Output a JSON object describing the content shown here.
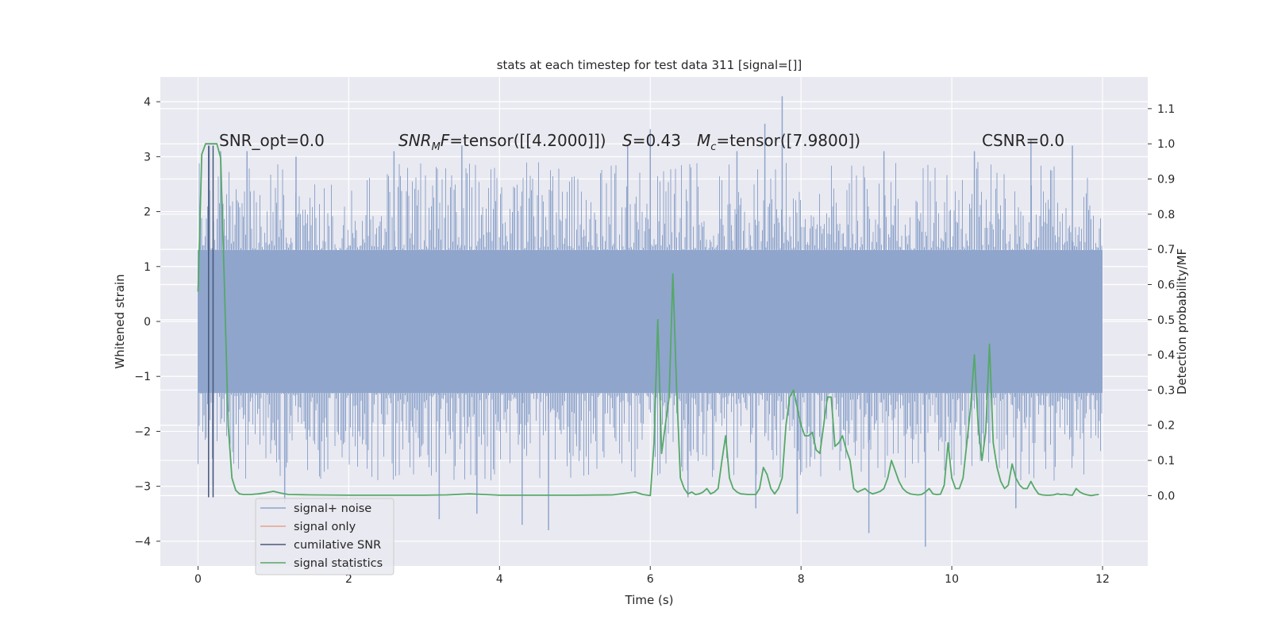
{
  "chart_data": {
    "type": "line",
    "title": "stats at each timestep for test data 311 [signal=[]]",
    "xlabel": "Time (s)",
    "ylabel": "Whitened strain",
    "ylabel_right": "Detection probability/MF",
    "xlim": [
      -0.5,
      12.6
    ],
    "ylim": [
      -4.45,
      4.45
    ],
    "ylim_right": [
      -0.2,
      1.19
    ],
    "x_ticks": [
      0,
      2,
      4,
      6,
      8,
      10,
      12
    ],
    "y_ticks": [
      -4,
      -3,
      -2,
      -1,
      0,
      1,
      2,
      3,
      4
    ],
    "y_ticks_right": [
      0.0,
      0.1,
      0.2,
      0.3,
      0.4,
      0.5,
      0.6,
      0.7,
      0.8,
      0.9,
      1.0,
      1.1
    ],
    "grid": true,
    "legend": {
      "placement": "lower-left",
      "entries": [
        "signal+ noise",
        "signal only",
        "cumilative SNR",
        "signal statistics"
      ]
    },
    "annotations": {
      "snr_opt": "SNR_opt=0.0",
      "snr_mf": "=tensor([[4.2000]])",
      "snr_mf_sym": "SNR",
      "snr_mf_sub": "M",
      "snr_mf_tail": "F",
      "s_sym": "S",
      "s_val": "=0.43",
      "mc_sym": "M",
      "mc_sub": "c",
      "mc_val": "=tensor([7.9800])",
      "csnr": "CSNR=0.0"
    },
    "series": [
      {
        "name": "signal+ noise",
        "axis": "left",
        "color": "#8fa5cc",
        "x_range": [
          0,
          12
        ],
        "band": [
          -1.3,
          1.3
        ],
        "spikes": [
          {
            "x": 0.03,
            "y": 2.1
          },
          {
            "x": 0.15,
            "y": 3.2
          },
          {
            "x": 0.3,
            "y": 3.1
          },
          {
            "x": 0.65,
            "y": 3.1
          },
          {
            "x": 1.3,
            "y": 3.0
          },
          {
            "x": 2.6,
            "y": 3.1
          },
          {
            "x": 3.5,
            "y": 3.2
          },
          {
            "x": 5.7,
            "y": 3.2
          },
          {
            "x": 6.0,
            "y": 3.5
          },
          {
            "x": 7.15,
            "y": 3.1
          },
          {
            "x": 7.52,
            "y": 3.6
          },
          {
            "x": 7.75,
            "y": 4.1
          },
          {
            "x": 9.1,
            "y": 3.1
          },
          {
            "x": 10.3,
            "y": 3.1
          },
          {
            "x": 11.05,
            "y": 3.3
          },
          {
            "x": 11.6,
            "y": 3.2
          },
          {
            "x": 3.2,
            "y": -3.6
          },
          {
            "x": 3.7,
            "y": -3.5
          },
          {
            "x": 4.3,
            "y": -3.7
          },
          {
            "x": 4.65,
            "y": -3.8
          },
          {
            "x": 7.95,
            "y": -3.5
          },
          {
            "x": 8.9,
            "y": -3.85
          },
          {
            "x": 9.65,
            "y": -4.1
          },
          {
            "x": 10.85,
            "y": -3.4
          },
          {
            "x": 7.4,
            "y": -3.4
          },
          {
            "x": 1.15,
            "y": -3.3
          },
          {
            "x": 6.5,
            "y": -3.2
          },
          {
            "x": 0.2,
            "y": -3.0
          }
        ]
      },
      {
        "name": "signal only",
        "axis": "left",
        "color": "#e4a48c",
        "points": []
      },
      {
        "name": "cumilative SNR",
        "axis": "left",
        "color": "#48587a",
        "vlines": [
          {
            "x": 0.14,
            "y0": -3.2,
            "y1": 3.2
          },
          {
            "x": 0.2,
            "y0": -3.2,
            "y1": 3.2
          }
        ]
      },
      {
        "name": "signal statistics",
        "axis": "right",
        "color": "#55a868",
        "x": [
          0.0,
          0.05,
          0.1,
          0.15,
          0.2,
          0.25,
          0.3,
          0.35,
          0.4,
          0.45,
          0.5,
          0.55,
          0.6,
          0.7,
          0.8,
          0.9,
          1.0,
          1.1,
          1.2,
          1.5,
          2.0,
          2.5,
          3.0,
          3.3,
          3.6,
          3.8,
          4.0,
          4.5,
          5.0,
          5.5,
          5.8,
          5.9,
          6.0,
          6.05,
          6.1,
          6.15,
          6.2,
          6.25,
          6.3,
          6.35,
          6.4,
          6.45,
          6.5,
          6.55,
          6.6,
          6.65,
          6.7,
          6.75,
          6.8,
          6.85,
          6.9,
          6.95,
          7.0,
          7.05,
          7.1,
          7.15,
          7.2,
          7.3,
          7.4,
          7.45,
          7.5,
          7.55,
          7.6,
          7.65,
          7.7,
          7.75,
          7.8,
          7.85,
          7.9,
          7.95,
          8.0,
          8.05,
          8.1,
          8.15,
          8.2,
          8.25,
          8.3,
          8.35,
          8.4,
          8.45,
          8.5,
          8.55,
          8.6,
          8.65,
          8.7,
          8.75,
          8.8,
          8.85,
          8.9,
          8.95,
          9.0,
          9.05,
          9.1,
          9.15,
          9.2,
          9.25,
          9.3,
          9.35,
          9.4,
          9.45,
          9.5,
          9.55,
          9.6,
          9.65,
          9.7,
          9.75,
          9.8,
          9.85,
          9.9,
          9.95,
          10.0,
          10.05,
          10.1,
          10.15,
          10.2,
          10.25,
          10.3,
          10.35,
          10.4,
          10.45,
          10.5,
          10.55,
          10.6,
          10.65,
          10.7,
          10.75,
          10.8,
          10.85,
          10.9,
          10.95,
          11.0,
          11.05,
          11.1,
          11.15,
          11.2,
          11.25,
          11.3,
          11.35,
          11.4,
          11.45,
          11.5,
          11.55,
          11.6,
          11.65,
          11.7,
          11.75,
          11.8,
          11.85,
          11.9,
          11.95
        ],
        "values": [
          0.58,
          0.97,
          1.0,
          1.0,
          1.0,
          1.0,
          0.96,
          0.6,
          0.2,
          0.05,
          0.015,
          0.005,
          0.003,
          0.003,
          0.005,
          0.008,
          0.012,
          0.007,
          0.003,
          0.002,
          0.001,
          0.001,
          0.001,
          0.002,
          0.005,
          0.003,
          0.001,
          0.001,
          0.001,
          0.002,
          0.01,
          0.003,
          0.0,
          0.15,
          0.5,
          0.12,
          0.2,
          0.28,
          0.63,
          0.3,
          0.05,
          0.02,
          0.005,
          0.01,
          0.003,
          0.005,
          0.01,
          0.02,
          0.005,
          0.01,
          0.02,
          0.1,
          0.17,
          0.05,
          0.02,
          0.01,
          0.005,
          0.003,
          0.003,
          0.02,
          0.08,
          0.06,
          0.02,
          0.005,
          0.02,
          0.05,
          0.2,
          0.28,
          0.3,
          0.25,
          0.2,
          0.17,
          0.17,
          0.18,
          0.13,
          0.12,
          0.2,
          0.28,
          0.28,
          0.14,
          0.15,
          0.17,
          0.13,
          0.1,
          0.02,
          0.01,
          0.015,
          0.02,
          0.01,
          0.005,
          0.008,
          0.012,
          0.02,
          0.05,
          0.1,
          0.07,
          0.04,
          0.02,
          0.01,
          0.005,
          0.003,
          0.002,
          0.003,
          0.01,
          0.02,
          0.005,
          0.003,
          0.004,
          0.03,
          0.15,
          0.05,
          0.02,
          0.02,
          0.05,
          0.15,
          0.25,
          0.4,
          0.2,
          0.1,
          0.18,
          0.43,
          0.15,
          0.08,
          0.04,
          0.02,
          0.03,
          0.09,
          0.05,
          0.03,
          0.02,
          0.02,
          0.04,
          0.02,
          0.005,
          0.002,
          0.001,
          0.001,
          0.002,
          0.005,
          0.003,
          0.004,
          0.002,
          0.001,
          0.02,
          0.01,
          0.005,
          0.002,
          0.0,
          0.002,
          0.003
        ]
      }
    ]
  }
}
